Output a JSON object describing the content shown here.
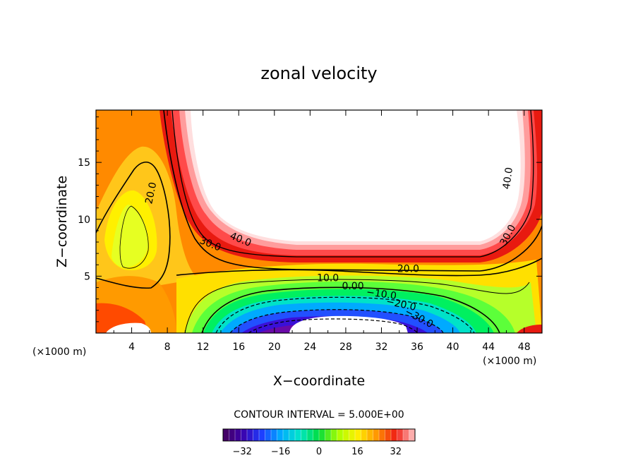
{
  "chart_data": {
    "type": "contour",
    "title": "zonal velocity",
    "xlabel": "X−coordinate",
    "ylabel": "Z−coordinate",
    "x_unit": "(×1000 m)",
    "y_unit": "(×1000 m)",
    "xlim": [
      0,
      50
    ],
    "ylim": [
      0,
      19.6
    ],
    "x_ticks": [
      4,
      8,
      12,
      16,
      20,
      24,
      28,
      32,
      36,
      40,
      44,
      48
    ],
    "x_tick_labels": [
      "4",
      "8",
      "12",
      "16",
      "20",
      "24",
      "28",
      "32",
      "36",
      "40",
      "44",
      "48"
    ],
    "y_ticks": [
      5,
      10,
      15
    ],
    "y_tick_labels": [
      "5",
      "10",
      "15"
    ],
    "contour_interval_text": "CONTOUR INTERVAL = 5.000E+00",
    "contour_labels": [
      {
        "text": "20.0",
        "x": 6.2,
        "z": 12.3,
        "angle": -78
      },
      {
        "text": "40.0",
        "x": 16.2,
        "z": 8.2,
        "angle": 22
      },
      {
        "text": "30.0",
        "x": 12.8,
        "z": 7.8,
        "angle": 22
      },
      {
        "text": "40.0",
        "x": 46.2,
        "z": 13.6,
        "angle": -82
      },
      {
        "text": "30.0",
        "x": 46.2,
        "z": 8.6,
        "angle": -62
      },
      {
        "text": "20.0",
        "x": 35.0,
        "z": 5.6,
        "angle": 0
      },
      {
        "text": "10.0",
        "x": 26.0,
        "z": 4.8,
        "angle": 0
      },
      {
        "text": "0.00",
        "x": 28.8,
        "z": 4.1,
        "angle": 0
      },
      {
        "text": "−10.0",
        "x": 32.0,
        "z": 3.4,
        "angle": 8
      },
      {
        "text": "−20.0",
        "x": 34.2,
        "z": 2.5,
        "angle": 12
      },
      {
        "text": "−30.0",
        "x": 36.2,
        "z": 1.3,
        "angle": 28
      }
    ],
    "value_range": [
      -40,
      40
    ],
    "colorbar": {
      "ticks": [
        -32,
        -16,
        0,
        16,
        32
      ],
      "tick_labels": [
        "−32",
        "−16",
        "0",
        "16",
        "32"
      ],
      "bins": 32,
      "range": [
        -40,
        40
      ]
    }
  }
}
